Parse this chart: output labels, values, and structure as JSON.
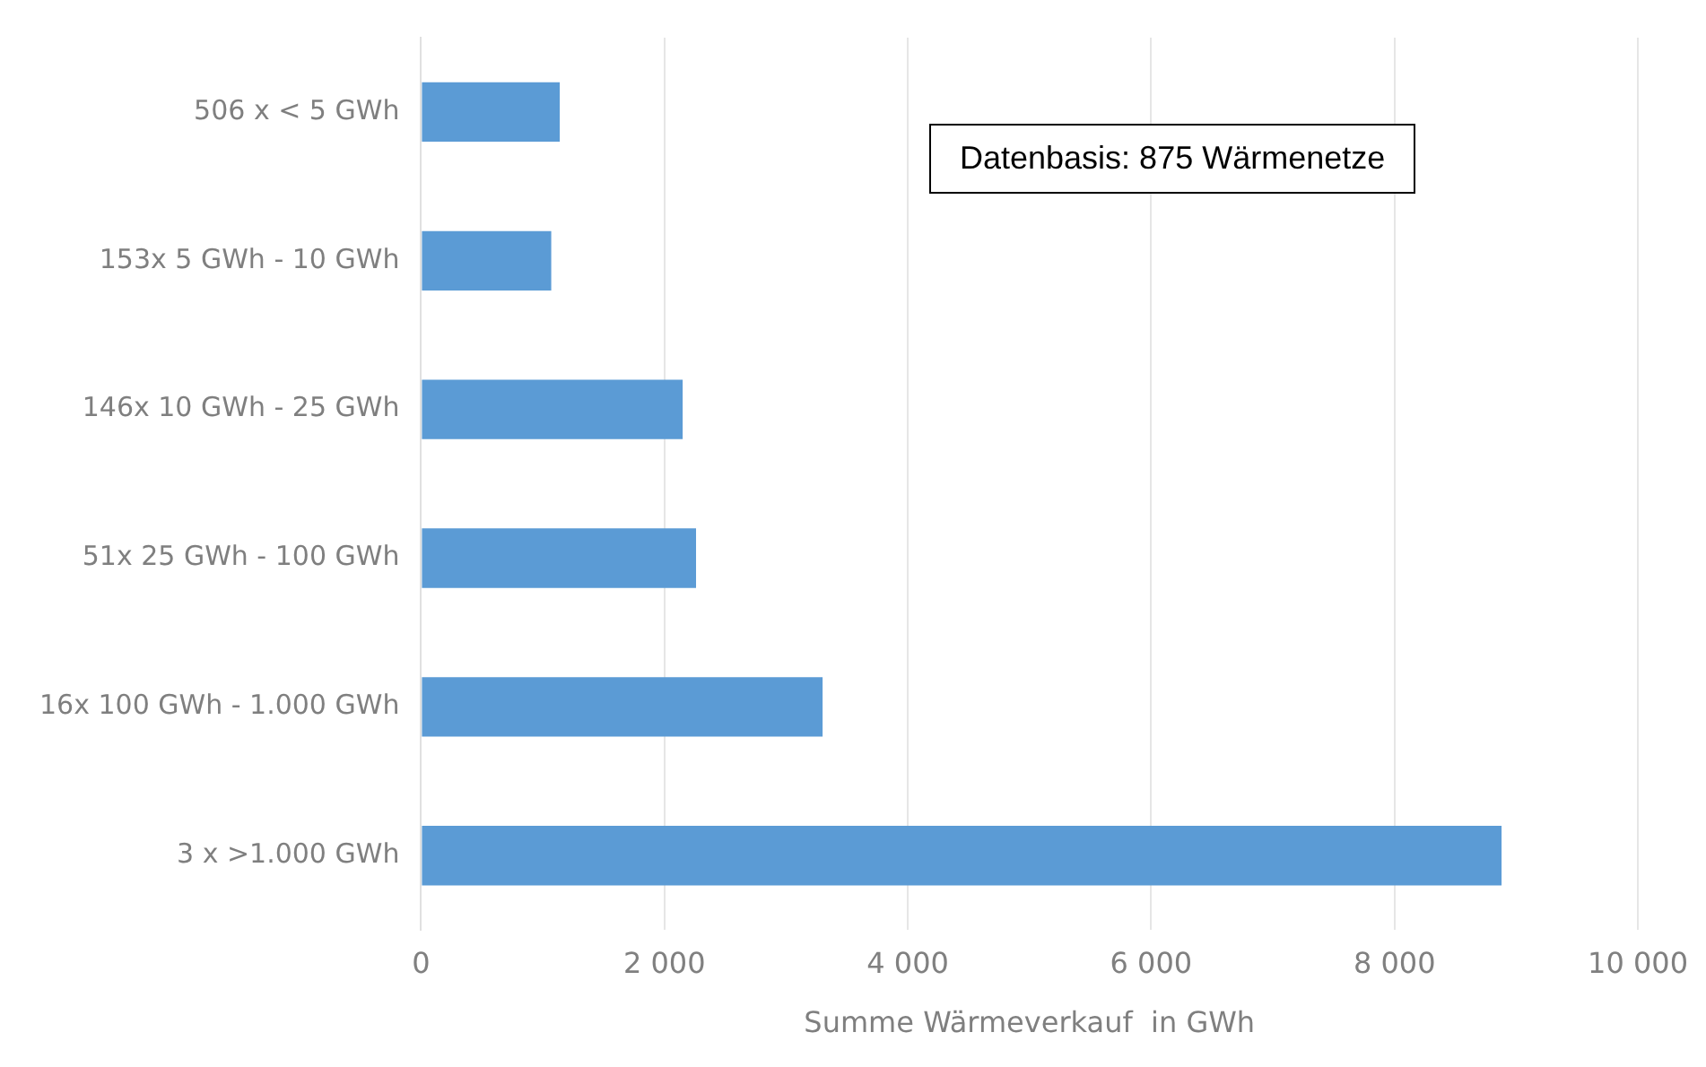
{
  "chart_data": {
    "type": "bar",
    "orientation": "horizontal",
    "categories": [
      "506 x < 5 GWh",
      "153x 5 GWh - 10 GWh",
      "146x 10 GWh - 25 GWh",
      "51x 25 GWh - 100 GWh",
      "16x 100 GWh - 1.000 GWh",
      "3 x >1.000 GWh"
    ],
    "values": [
      1140,
      1070,
      2150,
      2260,
      3300,
      8880
    ],
    "color": "#5b9bd5",
    "xlim": [
      0,
      10000
    ],
    "xticks": [
      {
        "value": 0,
        "label": "0"
      },
      {
        "value": 2000,
        "label": "2 000"
      },
      {
        "value": 4000,
        "label": "4 000"
      },
      {
        "value": 6000,
        "label": "6 000"
      },
      {
        "value": 8000,
        "label": "8 000"
      },
      {
        "value": 10000,
        "label": "10 000"
      }
    ],
    "xlabel": "Summe Wärmeverkauf  in GWh",
    "grid": "x",
    "legend": false,
    "annotations": [
      "Datenbasis: 875 Wärmenetze"
    ]
  }
}
